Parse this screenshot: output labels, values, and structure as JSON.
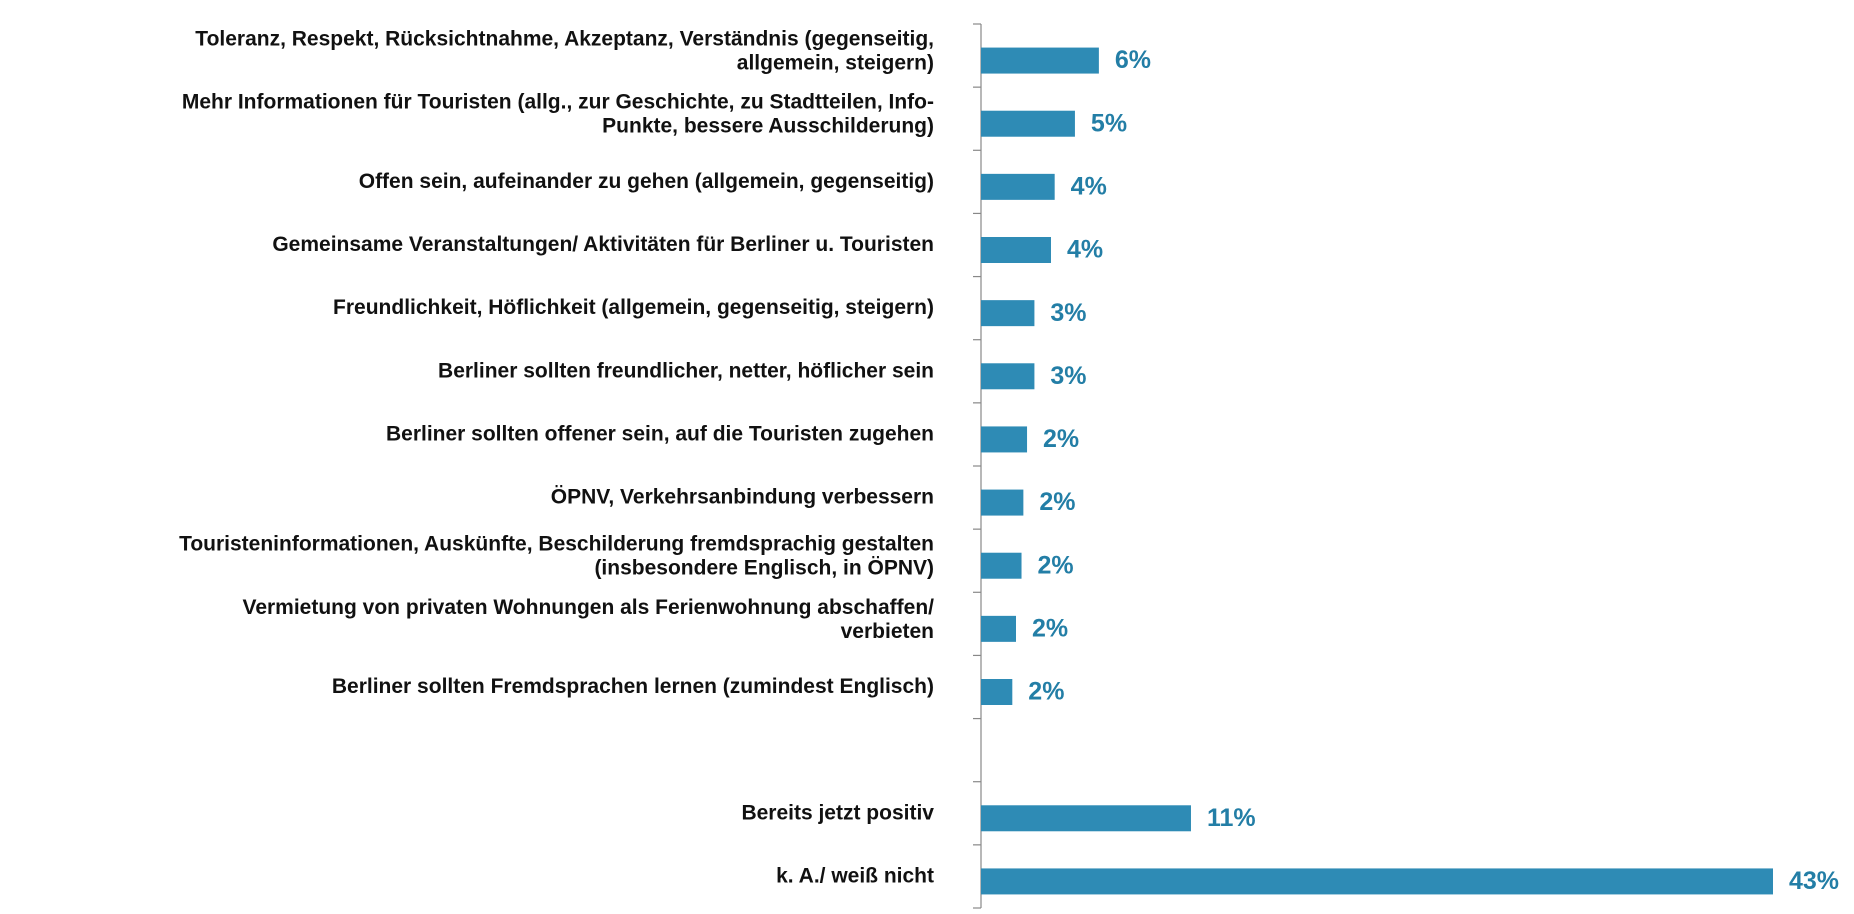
{
  "chart_data": {
    "type": "bar",
    "orientation": "horizontal",
    "categories": [
      "Toleranz, Respekt, Rücksichtnahme, Akzeptanz, Verständnis (gegenseitig,\nallgemein, steigern)",
      "Mehr Informationen für Touristen (allg., zur Geschichte, zu Stadtteilen, Info-\nPunkte, bessere Ausschilderung)",
      "Offen sein, aufeinander zu gehen (allgemein, gegenseitig)",
      "Gemeinsame Veranstaltungen/ Aktivitäten für Berliner u. Touristen",
      "Freundlichkeit, Höflichkeit (allgemein, gegenseitig, steigern)",
      "Berliner sollten freundlicher, netter, höflicher sein",
      "Berliner sollten offener sein, auf die Touristen zugehen",
      "ÖPNV, Verkehrsanbindung verbessern",
      "Touristeninformationen, Auskünfte, Beschilderung fremdsprachig gestalten\n(insbesondere Englisch, in ÖPNV)",
      "Vermietung von privaten Wohnungen als Ferienwohnung abschaffen/\nverbieten",
      "Berliner sollten Fremdsprachen lernen (zumindest Englisch)",
      null,
      "Bereits jetzt positiv",
      "k. A./  weiß nicht"
    ],
    "values": [
      6.4,
      5.1,
      4.0,
      3.8,
      2.9,
      2.9,
      2.5,
      2.3,
      2.2,
      1.9,
      1.7,
      null,
      11.4,
      43
    ],
    "value_labels": [
      "6%",
      "5%",
      "4%",
      "4%",
      "3%",
      "3%",
      "2%",
      "2%",
      "2%",
      "2%",
      "2%",
      null,
      "11%",
      "43%"
    ],
    "color": "#2e8bb5",
    "label_color": "#237ea6",
    "xlim": [
      0,
      43
    ]
  }
}
